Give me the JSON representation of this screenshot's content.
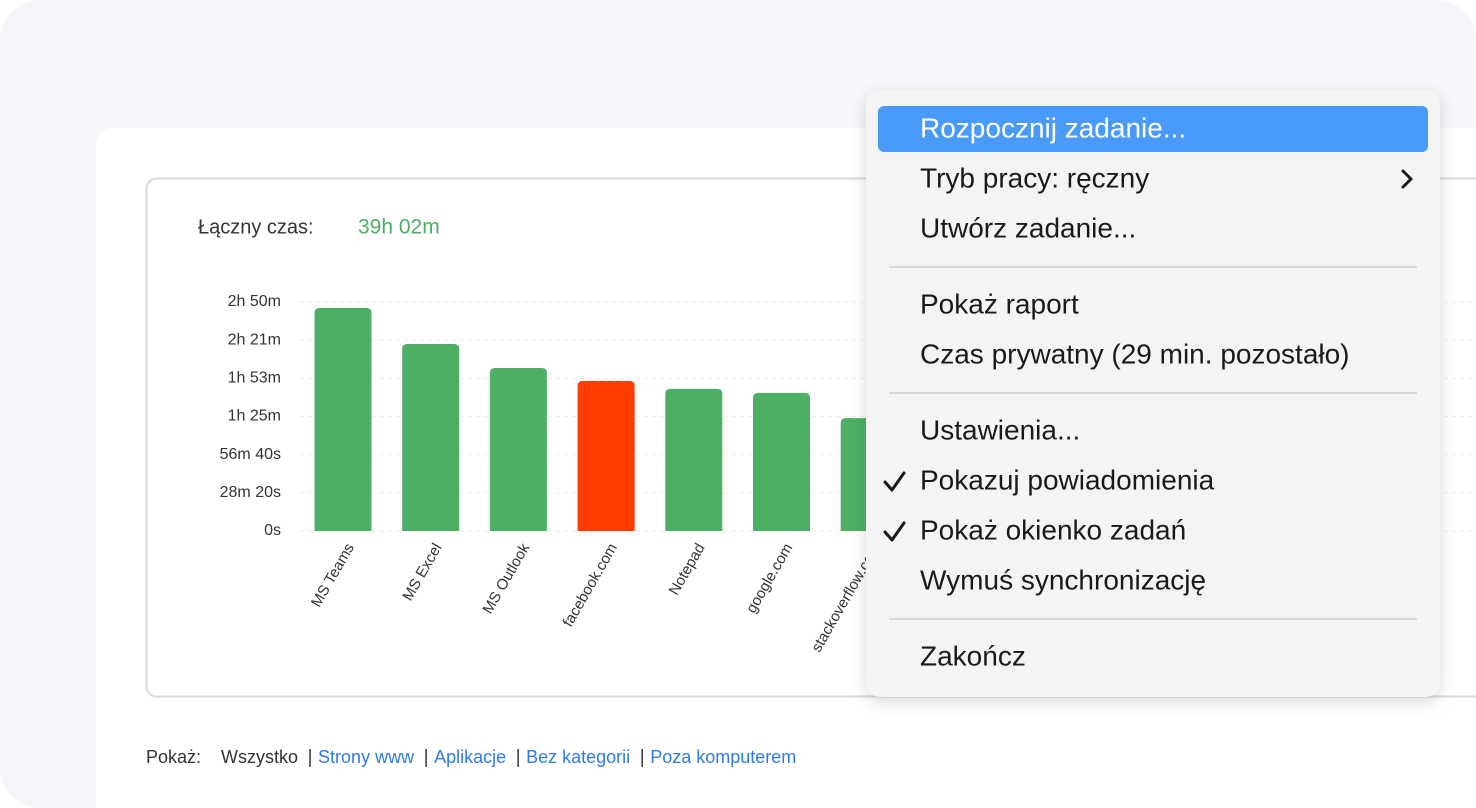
{
  "chart_data": {
    "type": "bar",
    "total_label": "Łączny czas:",
    "total_value": "39h 02m",
    "categories": [
      "MS Teams",
      "MS Excel",
      "MS Outlook",
      "facebook.com",
      "Notepad",
      "google.com",
      "stackoverflow.com"
    ],
    "values": [
      9930,
      8330,
      7260,
      6680,
      6330,
      6150,
      5030
    ],
    "colors": [
      "#4caf64",
      "#4caf64",
      "#4caf64",
      "#ff3d00",
      "#4caf64",
      "#4caf64",
      "#4caf64"
    ],
    "ylim": [
      0,
      10200
    ],
    "yticks": [
      {
        "value": 0,
        "label": "0s"
      },
      {
        "value": 1700,
        "label": "28m 20s"
      },
      {
        "value": 3400,
        "label": "56m 40s"
      },
      {
        "value": 5100,
        "label": "1h 25m"
      },
      {
        "value": 6800,
        "label": "1h 53m"
      },
      {
        "value": 8500,
        "label": "2h 21m"
      },
      {
        "value": 10200,
        "label": "2h 50m"
      }
    ],
    "grid": true
  },
  "filter": {
    "label": "Pokaż:",
    "options": [
      {
        "text": "Wszystko",
        "active": true
      },
      {
        "text": "Strony www",
        "active": false
      },
      {
        "text": "Aplikacje",
        "active": false
      },
      {
        "text": "Bez kategorii",
        "active": false
      },
      {
        "text": "Poza komputerem",
        "active": false
      }
    ]
  },
  "menu": {
    "groups": [
      [
        {
          "label": "Rozpocznij zadanie...",
          "highlighted": true
        },
        {
          "label": "Tryb pracy: ręczny",
          "submenu": true
        },
        {
          "label": "Utwórz zadanie..."
        }
      ],
      [
        {
          "label": "Pokaż raport"
        },
        {
          "label": "Czas prywatny (29 min. pozostało)"
        }
      ],
      [
        {
          "label": "Ustawienia..."
        },
        {
          "label": "Pokazuj powiadomienia",
          "checked": true
        },
        {
          "label": "Pokaż okienko zadań",
          "checked": true
        },
        {
          "label": "Wymuś synchronizację"
        }
      ],
      [
        {
          "label": "Zakończ"
        }
      ]
    ]
  }
}
